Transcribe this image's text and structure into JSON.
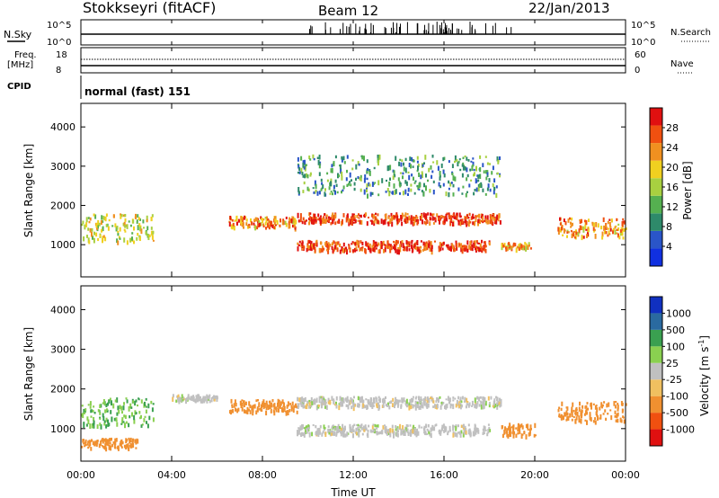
{
  "header": {
    "station": "Stokkseyri (fitACF)",
    "beam": "Beam 12",
    "date": "22/Jan/2013"
  },
  "noise_panel": {
    "label": "N.Sky",
    "ticks": [
      "10^5",
      "10^0"
    ],
    "right_ticks": [
      "10^5",
      "10^0"
    ],
    "legend": "N.Search"
  },
  "freq_panel": {
    "label_top": "Freq.",
    "label_bottom": "[MHz]",
    "ticks": [
      "18",
      "8"
    ],
    "right_ticks": [
      "60",
      "0"
    ],
    "legend": "Nave"
  },
  "cpid_panel": {
    "label": "CPID",
    "mode": "normal (fast) 151"
  },
  "colors": {
    "power": [
      "#1030e0",
      "#2a55c8",
      "#2e8a6a",
      "#55b050",
      "#a8d040",
      "#f0d020",
      "#f09020",
      "#f05010",
      "#e01010"
    ],
    "velocity": [
      "#e01010",
      "#f05010",
      "#f09030",
      "#f0c060",
      "#c0c0c0",
      "#8ad050",
      "#3aa050",
      "#2a6aa0",
      "#1030c0"
    ],
    "frame": "#000000"
  },
  "power_panel": {
    "ylabel": "Slant Range [km]",
    "yticks": [
      "4000",
      "3000",
      "2000",
      "1000"
    ],
    "colorbar": {
      "title": "Power [dB]",
      "ticks": [
        "28",
        "24",
        "20",
        "16",
        "12",
        "8",
        "4"
      ]
    }
  },
  "velocity_panel": {
    "ylabel": "Slant Range [km]",
    "yticks": [
      "4000",
      "3000",
      "2000",
      "1000"
    ],
    "colorbar": {
      "title": "Velocity [m s",
      "title_sup": "-1",
      "title_end": "]",
      "ticks": [
        "1000",
        "500",
        "100",
        "25",
        "-25",
        "-100",
        "-500",
        "-1000"
      ]
    }
  },
  "xaxis": {
    "label": "Time UT",
    "ticks": [
      "00:00",
      "04:00",
      "08:00",
      "12:00",
      "16:00",
      "20:00",
      "00:00"
    ]
  },
  "chart_data": [
    {
      "type": "heatmap",
      "title": "Stokkseyri (fitACF)",
      "subtitle": "Beam 12",
      "xlabel": "Time UT",
      "ylabel": "Slant Range [km]",
      "x_ticks": [
        "00:00",
        "04:00",
        "08:00",
        "12:00",
        "16:00",
        "20:00",
        "00:00"
      ],
      "xlim_hours": [
        0,
        24
      ],
      "ylim": [
        180,
        4600
      ],
      "colorbar_label": "Power [dB]",
      "colorbar_range": [
        0,
        30
      ],
      "colorbar_ticks": [
        4,
        8,
        12,
        16,
        20,
        24,
        28
      ],
      "echo_regions": [
        {
          "t_start": 0.0,
          "t_end": 3.2,
          "range_center": 1450,
          "range_width": 700,
          "power": 16
        },
        {
          "t_start": 6.5,
          "t_end": 9.5,
          "range_center": 1600,
          "range_width": 300,
          "power": 22
        },
        {
          "t_start": 9.5,
          "t_end": 18.5,
          "range_center": 1700,
          "range_width": 250,
          "power": 26
        },
        {
          "t_start": 9.5,
          "t_end": 18.0,
          "range_center": 1000,
          "range_width": 250,
          "power": 26
        },
        {
          "t_start": 18.5,
          "t_end": 19.8,
          "range_center": 1000,
          "range_width": 150,
          "power": 20
        },
        {
          "t_start": 21.0,
          "t_end": 24.0,
          "range_center": 1450,
          "range_width": 500,
          "power": 22
        },
        {
          "t_start": 9.5,
          "t_end": 18.5,
          "range_center": 2800,
          "range_width": 1000,
          "power": 10
        }
      ]
    },
    {
      "type": "heatmap",
      "xlabel": "Time UT",
      "ylabel": "Slant Range [km]",
      "x_ticks": [
        "00:00",
        "04:00",
        "08:00",
        "12:00",
        "16:00",
        "20:00",
        "00:00"
      ],
      "xlim_hours": [
        0,
        24
      ],
      "ylim": [
        180,
        4600
      ],
      "colorbar_label": "Velocity [m s-1]",
      "colorbar_ticks": [
        1000,
        500,
        100,
        25,
        -25,
        -100,
        -500,
        -1000
      ],
      "echo_regions": [
        {
          "t_start": 0.0,
          "t_end": 3.2,
          "range_center": 1450,
          "range_width": 700,
          "velocity": 100
        },
        {
          "t_start": 0.0,
          "t_end": 2.5,
          "range_center": 650,
          "range_width": 250,
          "velocity": -300
        },
        {
          "t_start": 4.0,
          "t_end": 6.0,
          "range_center": 1800,
          "range_width": 150,
          "velocity": 0
        },
        {
          "t_start": 6.5,
          "t_end": 9.5,
          "range_center": 1600,
          "range_width": 300,
          "velocity": -150
        },
        {
          "t_start": 9.5,
          "t_end": 18.5,
          "range_center": 1700,
          "range_width": 250,
          "velocity": 0
        },
        {
          "t_start": 9.5,
          "t_end": 18.0,
          "range_center": 1000,
          "range_width": 250,
          "velocity": 0
        },
        {
          "t_start": 18.5,
          "t_end": 20.0,
          "range_center": 1000,
          "range_width": 300,
          "velocity": -200
        },
        {
          "t_start": 21.0,
          "t_end": 24.0,
          "range_center": 1450,
          "range_width": 500,
          "velocity": -200
        }
      ]
    }
  ]
}
